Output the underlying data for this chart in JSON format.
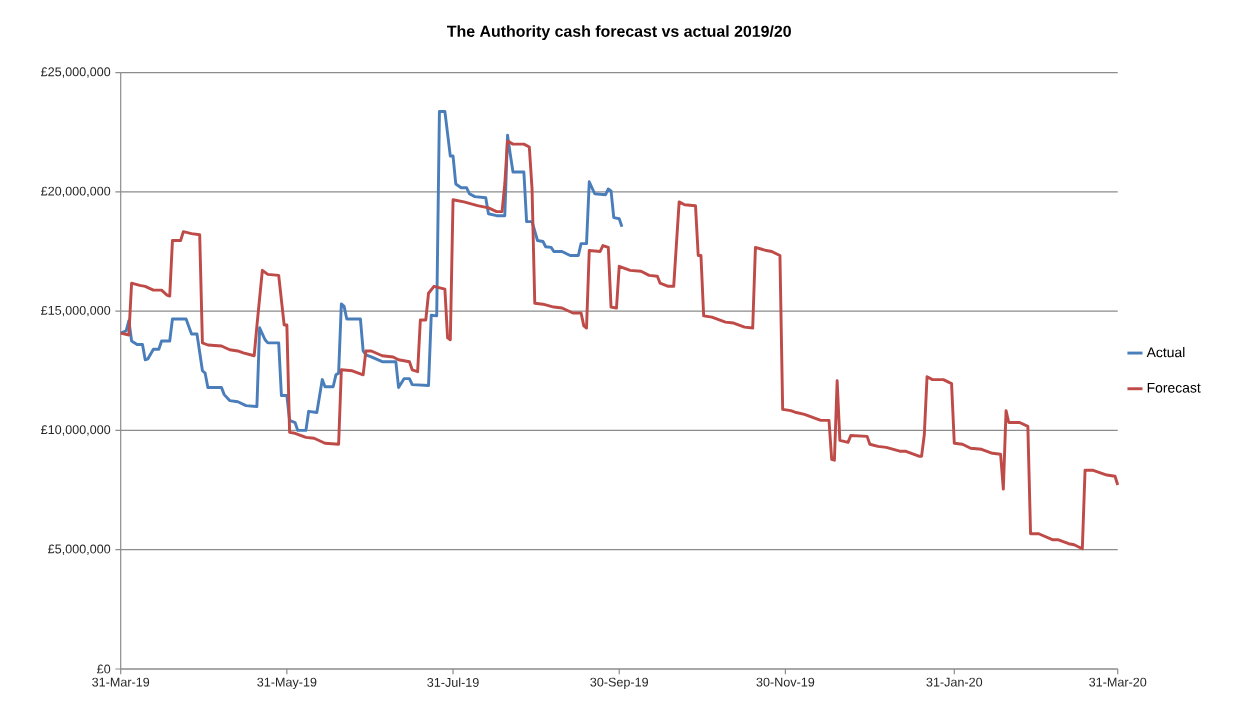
{
  "chart_data": {
    "type": "line",
    "title": "The Authority cash forecast vs actual 2019/20",
    "xlim": [
      "2019-03-31",
      "2020-03-31"
    ],
    "xticks": [
      {
        "value": "2019-03-31",
        "label": "31-Mar-19"
      },
      {
        "value": "2019-05-31",
        "label": "31-May-19"
      },
      {
        "value": "2019-07-31",
        "label": "31-Jul-19"
      },
      {
        "value": "2019-09-30",
        "label": "30-Sep-19"
      },
      {
        "value": "2019-11-30",
        "label": "30-Nov-19"
      },
      {
        "value": "2020-01-31",
        "label": "31-Jan-20"
      },
      {
        "value": "2020-03-31",
        "label": "31-Mar-20"
      }
    ],
    "ylim": [
      0,
      25000000
    ],
    "yticks": [
      {
        "value": 0,
        "label": "£0"
      },
      {
        "value": 5000000,
        "label": "£5,000,000"
      },
      {
        "value": 10000000,
        "label": "£10,000,000"
      },
      {
        "value": 15000000,
        "label": "£15,000,000"
      },
      {
        "value": 20000000,
        "label": "£20,000,000"
      },
      {
        "value": 25000000,
        "label": "£25,000,000"
      }
    ],
    "grid": "y",
    "legend": "right",
    "series": [
      {
        "name": "Actual",
        "color": "#4a7ebb",
        "x": [
          "2019-03-31",
          "2019-04-02",
          "2019-04-03",
          "2019-04-04",
          "2019-04-06",
          "2019-04-08",
          "2019-04-09",
          "2019-04-10",
          "2019-04-12",
          "2019-04-14",
          "2019-04-15",
          "2019-04-18",
          "2019-04-19",
          "2019-04-24",
          "2019-04-26",
          "2019-04-28",
          "2019-04-30",
          "2019-05-01",
          "2019-05-02",
          "2019-05-07",
          "2019-05-08",
          "2019-05-10",
          "2019-05-13",
          "2019-05-16",
          "2019-05-20",
          "2019-05-21",
          "2019-05-23",
          "2019-05-24",
          "2019-05-28",
          "2019-05-29",
          "2019-05-31",
          "2019-06-01",
          "2019-06-03",
          "2019-06-04",
          "2019-06-07",
          "2019-06-08",
          "2019-06-11",
          "2019-06-13",
          "2019-06-14",
          "2019-06-17",
          "2019-06-18",
          "2019-06-19",
          "2019-06-20",
          "2019-06-21",
          "2019-06-22",
          "2019-06-27",
          "2019-06-28",
          "2019-06-29",
          "2019-07-01",
          "2019-07-05",
          "2019-07-10",
          "2019-07-11",
          "2019-07-13",
          "2019-07-15",
          "2019-07-16",
          "2019-07-22",
          "2019-07-23",
          "2019-07-25",
          "2019-07-26",
          "2019-07-28",
          "2019-07-30",
          "2019-07-31",
          "2019-08-01",
          "2019-08-03",
          "2019-08-05",
          "2019-08-06",
          "2019-08-08",
          "2019-08-12",
          "2019-08-13",
          "2019-08-16",
          "2019-08-19",
          "2019-08-20",
          "2019-08-21",
          "2019-08-22",
          "2019-08-26",
          "2019-08-27",
          "2019-08-29",
          "2019-08-31",
          "2019-09-02",
          "2019-09-03",
          "2019-09-05",
          "2019-09-06",
          "2019-09-09",
          "2019-09-12",
          "2019-09-15",
          "2019-09-16",
          "2019-09-18",
          "2019-09-19",
          "2019-09-21",
          "2019-09-25",
          "2019-09-26",
          "2019-09-27",
          "2019-09-28",
          "2019-09-30",
          "2019-10-01"
        ],
        "values": [
          14080000,
          14170000,
          14600000,
          13750000,
          13600000,
          13600000,
          12960000,
          13000000,
          13400000,
          13400000,
          13750000,
          13750000,
          14670000,
          14670000,
          14040000,
          14040000,
          12500000,
          12400000,
          11800000,
          11800000,
          11500000,
          11250000,
          11200000,
          11040000,
          11000000,
          14300000,
          13800000,
          13670000,
          13670000,
          11460000,
          11460000,
          10420000,
          10330000,
          10000000,
          10000000,
          10800000,
          10750000,
          12130000,
          11830000,
          11830000,
          12330000,
          12400000,
          15300000,
          15200000,
          14670000,
          14670000,
          13330000,
          13170000,
          13080000,
          12880000,
          12880000,
          11800000,
          12170000,
          12170000,
          11920000,
          11880000,
          14830000,
          14800000,
          23370000,
          23370000,
          21500000,
          21500000,
          20330000,
          20170000,
          20170000,
          19920000,
          19800000,
          19750000,
          19080000,
          19000000,
          19000000,
          22370000,
          21580000,
          20830000,
          20830000,
          18750000,
          18750000,
          17960000,
          17920000,
          17700000,
          17670000,
          17500000,
          17500000,
          17330000,
          17330000,
          17830000,
          17830000,
          20420000,
          19920000,
          19880000,
          20120000,
          20040000,
          18920000,
          18870000,
          18540000
        ]
      },
      {
        "name": "Forecast",
        "color": "#be4b48",
        "x": [
          "2019-03-31",
          "2019-04-03",
          "2019-04-04",
          "2019-04-07",
          "2019-04-09",
          "2019-04-12",
          "2019-04-15",
          "2019-04-17",
          "2019-04-18",
          "2019-04-19",
          "2019-04-22",
          "2019-04-23",
          "2019-04-26",
          "2019-04-29",
          "2019-04-30",
          "2019-05-02",
          "2019-05-07",
          "2019-05-10",
          "2019-05-13",
          "2019-05-15",
          "2019-05-19",
          "2019-05-20",
          "2019-05-22",
          "2019-05-24",
          "2019-05-28",
          "2019-05-30",
          "2019-05-31",
          "2019-06-01",
          "2019-06-03",
          "2019-06-07",
          "2019-06-10",
          "2019-06-14",
          "2019-06-19",
          "2019-06-20",
          "2019-06-24",
          "2019-06-28",
          "2019-06-29",
          "2019-07-01",
          "2019-07-05",
          "2019-07-09",
          "2019-07-11",
          "2019-07-15",
          "2019-07-16",
          "2019-07-18",
          "2019-07-19",
          "2019-07-21",
          "2019-07-22",
          "2019-07-24",
          "2019-07-28",
          "2019-07-29",
          "2019-07-30",
          "2019-07-31",
          "2019-08-04",
          "2019-08-09",
          "2019-08-13",
          "2019-08-16",
          "2019-08-18",
          "2019-08-19",
          "2019-08-20",
          "2019-08-22",
          "2019-08-26",
          "2019-08-28",
          "2019-08-29",
          "2019-08-30",
          "2019-09-02",
          "2019-09-06",
          "2019-09-09",
          "2019-09-13",
          "2019-09-16",
          "2019-09-17",
          "2019-09-18",
          "2019-09-19",
          "2019-09-23",
          "2019-09-24",
          "2019-09-26",
          "2019-09-27",
          "2019-09-29",
          "2019-09-30",
          "2019-10-04",
          "2019-10-08",
          "2019-10-11",
          "2019-10-14",
          "2019-10-15",
          "2019-10-18",
          "2019-10-20",
          "2019-10-22",
          "2019-10-24",
          "2019-10-28",
          "2019-10-29",
          "2019-10-30",
          "2019-10-31",
          "2019-11-03",
          "2019-11-08",
          "2019-11-11",
          "2019-11-15",
          "2019-11-18",
          "2019-11-19",
          "2019-11-23",
          "2019-11-25",
          "2019-11-28",
          "2019-11-29",
          "2019-12-02",
          "2019-12-04",
          "2019-12-07",
          "2019-12-13",
          "2019-12-16",
          "2019-12-17",
          "2019-12-18",
          "2019-12-19",
          "2019-12-20",
          "2019-12-23",
          "2019-12-24",
          "2019-12-30",
          "2019-12-31",
          "2020-01-03",
          "2020-01-06",
          "2020-01-11",
          "2020-01-13",
          "2020-01-18",
          "2020-01-19",
          "2020-01-20",
          "2020-01-21",
          "2020-01-23",
          "2020-01-27",
          "2020-01-30",
          "2020-01-31",
          "2020-02-03",
          "2020-02-06",
          "2020-02-10",
          "2020-02-14",
          "2020-02-17",
          "2020-02-18",
          "2020-02-19",
          "2020-02-20",
          "2020-02-24",
          "2020-02-27",
          "2020-02-28",
          "2020-03-02",
          "2020-03-07",
          "2020-03-09",
          "2020-03-13",
          "2020-03-15",
          "2020-03-18",
          "2020-03-19",
          "2020-03-22",
          "2020-03-27",
          "2020-03-30",
          "2020-03-31"
        ],
        "values": [
          14080000,
          14000000,
          16170000,
          16080000,
          16040000,
          15880000,
          15880000,
          15670000,
          15630000,
          17960000,
          17960000,
          18330000,
          18250000,
          18200000,
          13670000,
          13580000,
          13540000,
          13380000,
          13330000,
          13250000,
          13130000,
          14380000,
          16710000,
          16540000,
          16500000,
          14420000,
          14420000,
          9920000,
          9880000,
          9710000,
          9670000,
          9460000,
          9420000,
          12540000,
          12500000,
          12330000,
          13330000,
          13330000,
          13130000,
          13080000,
          12960000,
          12880000,
          12540000,
          12460000,
          14630000,
          14630000,
          15750000,
          16040000,
          15920000,
          13880000,
          13800000,
          19670000,
          19580000,
          19420000,
          19330000,
          19170000,
          19170000,
          20330000,
          22130000,
          22000000,
          22000000,
          21880000,
          20130000,
          15330000,
          15290000,
          15170000,
          15130000,
          14920000,
          14920000,
          14380000,
          14290000,
          17540000,
          17500000,
          17750000,
          17670000,
          15170000,
          15130000,
          16880000,
          16710000,
          16670000,
          16500000,
          16460000,
          16170000,
          16040000,
          16040000,
          19580000,
          19460000,
          19420000,
          17330000,
          17330000,
          14800000,
          14750000,
          14540000,
          14500000,
          14330000,
          14290000,
          17670000,
          17540000,
          17500000,
          17330000,
          10880000,
          10830000,
          10750000,
          10670000,
          10420000,
          10420000,
          8790000,
          8750000,
          12080000,
          9580000,
          9500000,
          9790000,
          9750000,
          9420000,
          9330000,
          9290000,
          9130000,
          9130000,
          8920000,
          8920000,
          9830000,
          12250000,
          12130000,
          12130000,
          11960000,
          9460000,
          9420000,
          9250000,
          9210000,
          9040000,
          9000000,
          7540000,
          10830000,
          10330000,
          10330000,
          10170000,
          5670000,
          5670000,
          5420000,
          5420000,
          5250000,
          5210000,
          5040000,
          8330000,
          8330000,
          8130000,
          8080000,
          7710000
        ]
      }
    ]
  }
}
